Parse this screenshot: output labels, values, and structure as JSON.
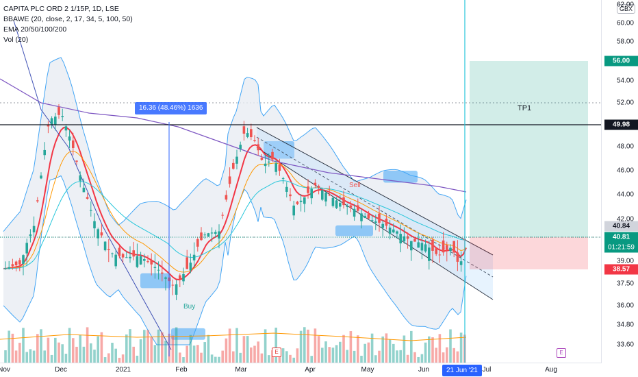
{
  "legend": {
    "symbol": "CAPITA PLC ORD 2 1/15P, 1D, LSE",
    "bbawe": "BBAWE (20, close, 2, 17, 34, 5, 100, 50)",
    "ema": "EMA 20/50/100/200",
    "vol": "Vol (20)"
  },
  "currency": "GBX",
  "y_ticks": [
    "62.00",
    "60.00",
    "58.00",
    "56.00",
    "54.00",
    "52.00",
    "50.00",
    "48.00",
    "46.00",
    "44.00",
    "42.00",
    "40.00",
    "39.00",
    "37.50",
    "36.00",
    "34.80",
    "33.60"
  ],
  "price_labels": [
    {
      "value": "56.00",
      "bg": "#089981",
      "fg": "#ffffff"
    },
    {
      "value": "49.98",
      "bg": "#131722",
      "fg": "#ffffff"
    },
    {
      "value": "40.84",
      "bg": "#d1d4dc",
      "fg": "#131722"
    },
    {
      "value": "40.81",
      "bg": "#089981",
      "fg": "#ffffff",
      "sub": "01:21:59"
    },
    {
      "value": "38.57",
      "bg": "#f23645",
      "fg": "#ffffff"
    }
  ],
  "x_ticks": [
    "Nov",
    "Dec",
    "2021",
    "Feb",
    "Mar",
    "Apr",
    "May",
    "Jun",
    "Jul",
    "Aug"
  ],
  "cursor_date": "21 Jun '21",
  "measure_label": "16.36 (48.46%) 1636",
  "tp_label": "TP1",
  "signals": {
    "buy": "Buy",
    "sell": "Sell"
  },
  "earnings_badge": "E",
  "colors": {
    "up": "#26a69a",
    "down": "#ef5350",
    "ema20": "#f23645",
    "ema50": "#ff9800",
    "ema100": "#26c6da",
    "ema200": "#7e57c2",
    "band_fill": "#e9ecf2",
    "band_blue": "#42a5f5",
    "accent": "#2962ff"
  }
}
